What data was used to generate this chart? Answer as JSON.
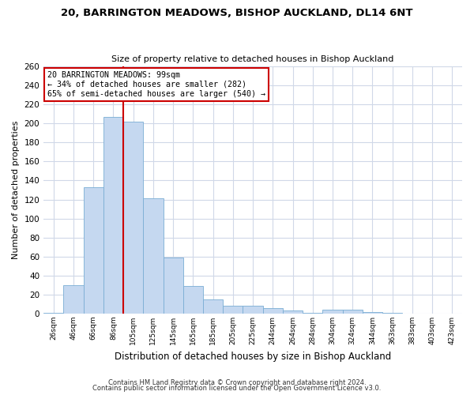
{
  "title": "20, BARRINGTON MEADOWS, BISHOP AUCKLAND, DL14 6NT",
  "subtitle": "Size of property relative to detached houses in Bishop Auckland",
  "xlabel": "Distribution of detached houses by size in Bishop Auckland",
  "ylabel": "Number of detached properties",
  "bar_labels": [
    "26sqm",
    "46sqm",
    "66sqm",
    "86sqm",
    "105sqm",
    "125sqm",
    "145sqm",
    "165sqm",
    "185sqm",
    "205sqm",
    "225sqm",
    "244sqm",
    "264sqm",
    "284sqm",
    "304sqm",
    "324sqm",
    "344sqm",
    "363sqm",
    "383sqm",
    "403sqm",
    "423sqm"
  ],
  "bar_values": [
    1,
    30,
    133,
    207,
    202,
    121,
    59,
    29,
    15,
    8,
    8,
    6,
    3,
    1,
    4,
    4,
    2,
    1,
    0,
    0,
    0
  ],
  "bar_color": "#c5d8f0",
  "bar_edge_color": "#7aadd4",
  "vline_x": 4.0,
  "vline_color": "#cc0000",
  "annotation_text": "20 BARRINGTON MEADOWS: 99sqm\n← 34% of detached houses are smaller (282)\n65% of semi-detached houses are larger (540) →",
  "annotation_box_color": "#ffffff",
  "annotation_box_edge_color": "#cc0000",
  "ylim": [
    0,
    260
  ],
  "yticks": [
    0,
    20,
    40,
    60,
    80,
    100,
    120,
    140,
    160,
    180,
    200,
    220,
    240,
    260
  ],
  "footer1": "Contains HM Land Registry data © Crown copyright and database right 2024.",
  "footer2": "Contains public sector information licensed under the Open Government Licence v3.0.",
  "background_color": "#ffffff",
  "grid_color": "#d0d8e8",
  "title_fontsize": 9.5,
  "subtitle_fontsize": 8.0,
  "xlabel_fontsize": 8.5,
  "ylabel_fontsize": 8.0,
  "xtick_fontsize": 6.5,
  "ytick_fontsize": 7.5,
  "footer_fontsize": 6.0,
  "annot_fontsize": 7.2
}
